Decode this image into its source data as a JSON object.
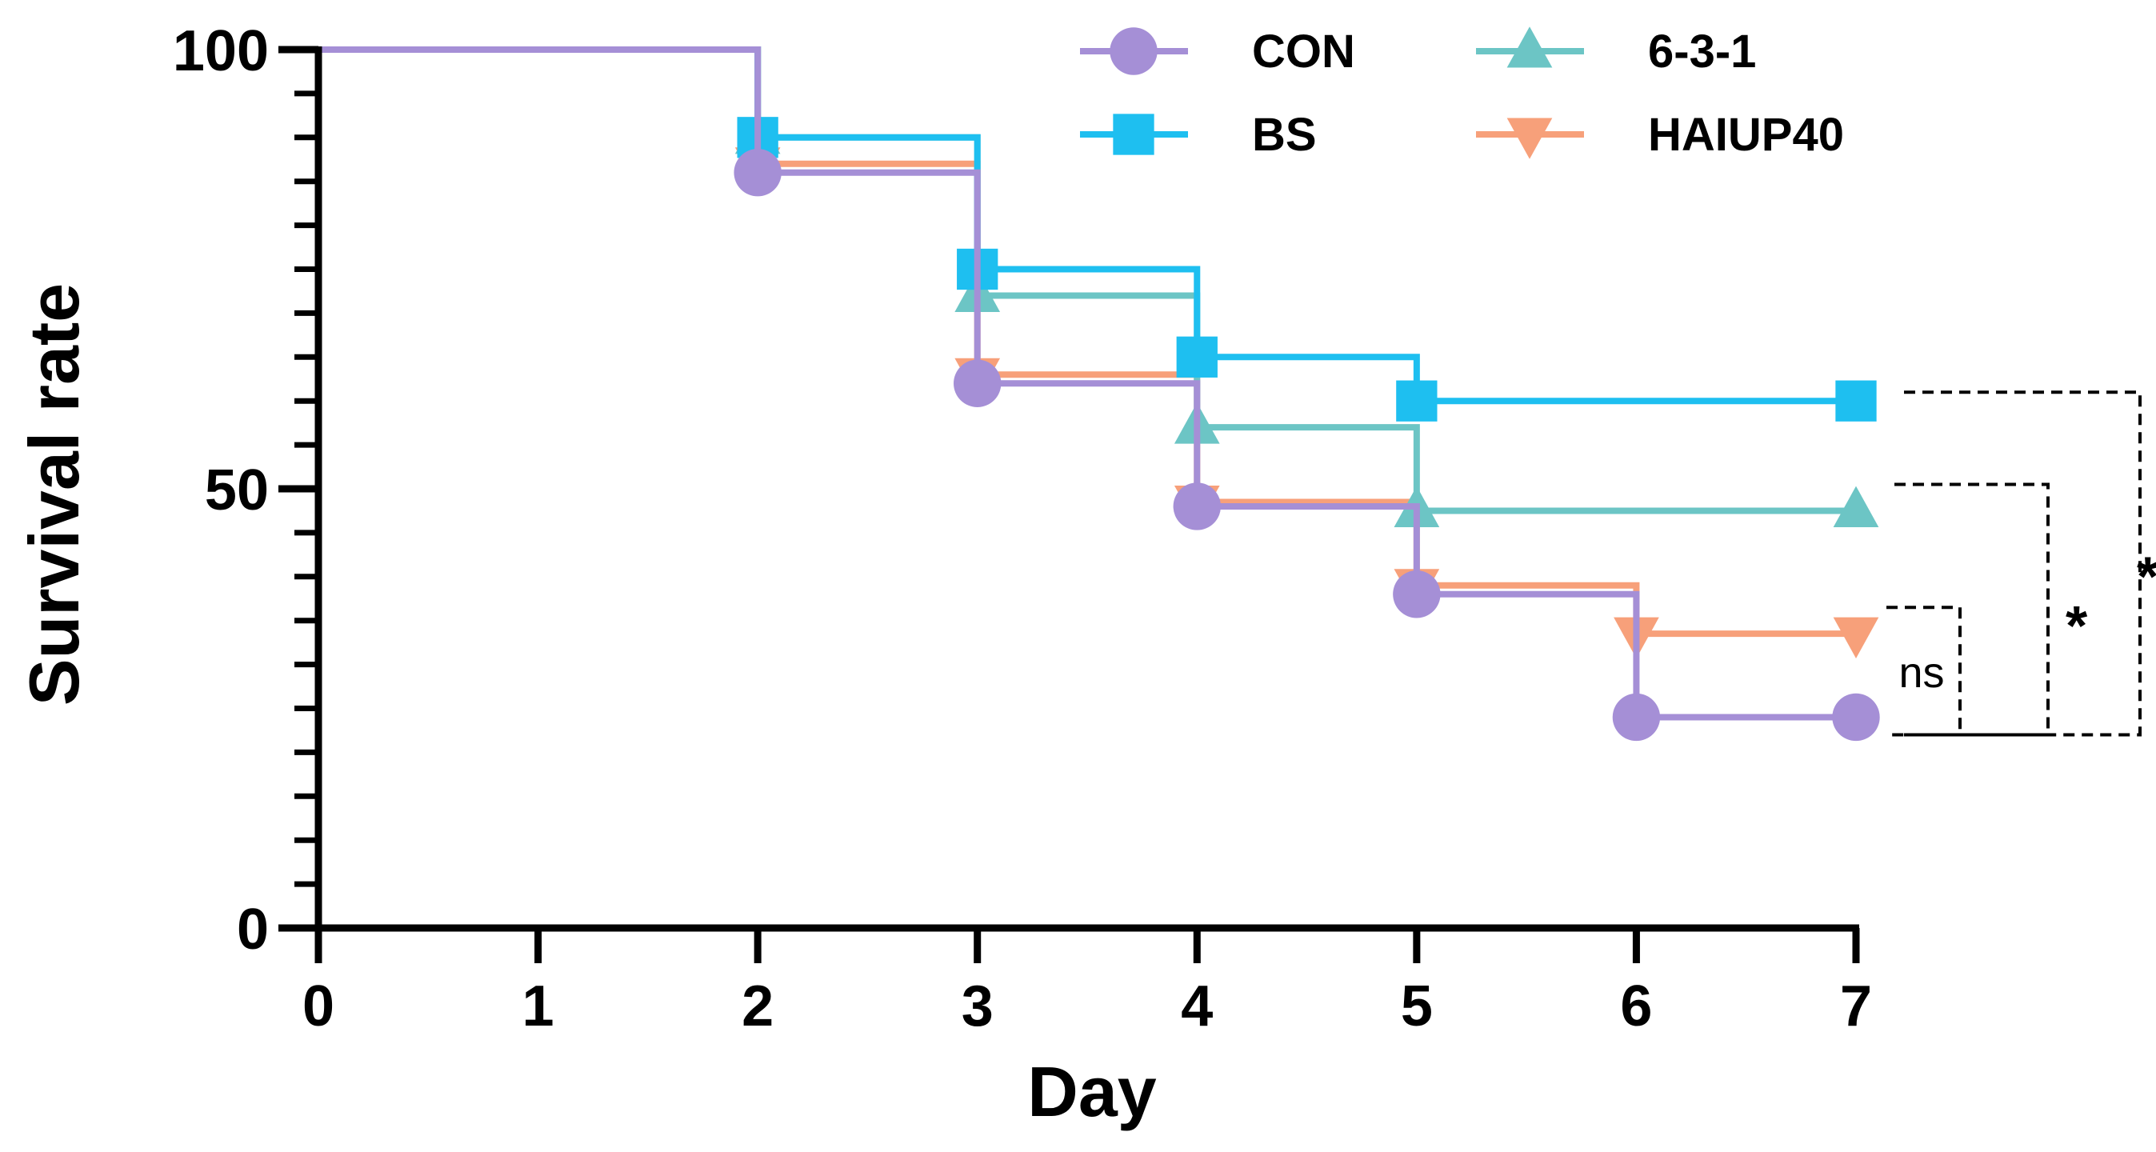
{
  "chart_data": {
    "type": "line",
    "subtype": "kaplan-meier step",
    "title": "",
    "xlabel": "Day",
    "ylabel": "Survival rate",
    "xlim": [
      0,
      7
    ],
    "ylim": [
      0,
      100
    ],
    "x_ticks": [
      0,
      1,
      2,
      3,
      4,
      5,
      6,
      7
    ],
    "x_tick_labels": [
      "0",
      "1",
      "2",
      "3",
      "4",
      "5",
      "6",
      "7"
    ],
    "y_major_ticks": [
      0,
      50,
      100
    ],
    "y_tick_labels": [
      "0",
      "50",
      "100"
    ],
    "y_minor_step": 5,
    "grid": false,
    "legend_position": "top",
    "series": [
      {
        "name": "CON",
        "color": "#A58FD6",
        "marker": "circle",
        "points": [
          [
            0,
            100
          ],
          [
            2,
            86
          ],
          [
            3,
            62
          ],
          [
            4,
            48
          ],
          [
            5,
            38
          ],
          [
            6,
            24
          ],
          [
            7,
            24
          ]
        ]
      },
      {
        "name": "BS",
        "color": "#1EBFF0",
        "marker": "square",
        "points": [
          [
            0,
            100
          ],
          [
            2,
            90
          ],
          [
            3,
            75
          ],
          [
            4,
            65
          ],
          [
            5,
            60
          ],
          [
            7,
            60
          ]
        ]
      },
      {
        "name": "6-3-1",
        "color": "#6CC5C5",
        "marker": "triangle-up",
        "points": [
          [
            0,
            100
          ],
          [
            2,
            90
          ],
          [
            3,
            72
          ],
          [
            4,
            57
          ],
          [
            5,
            47.5
          ],
          [
            7,
            47.5
          ]
        ]
      },
      {
        "name": "HAIUP40",
        "color": "#F7A07A",
        "marker": "triangle-down",
        "points": [
          [
            0,
            100
          ],
          [
            2,
            87
          ],
          [
            3,
            63
          ],
          [
            4,
            48.5
          ],
          [
            5,
            39
          ],
          [
            6,
            33.5
          ],
          [
            7,
            33.5
          ]
        ]
      }
    ],
    "legend_order": [
      "CON",
      "6-3-1",
      "BS",
      "HAIUP40"
    ],
    "annotations": [
      {
        "label": "ns",
        "compare": [
          "CON",
          "HAIUP40"
        ],
        "y_from": 22,
        "y_to": 36.5
      },
      {
        "label": "*",
        "compare": [
          "CON",
          "6-3-1"
        ],
        "y_from": 22,
        "y_to": 50.5
      },
      {
        "label": "*",
        "compare": [
          "CON",
          "BS"
        ],
        "y_from": 22,
        "y_to": 61
      }
    ]
  }
}
